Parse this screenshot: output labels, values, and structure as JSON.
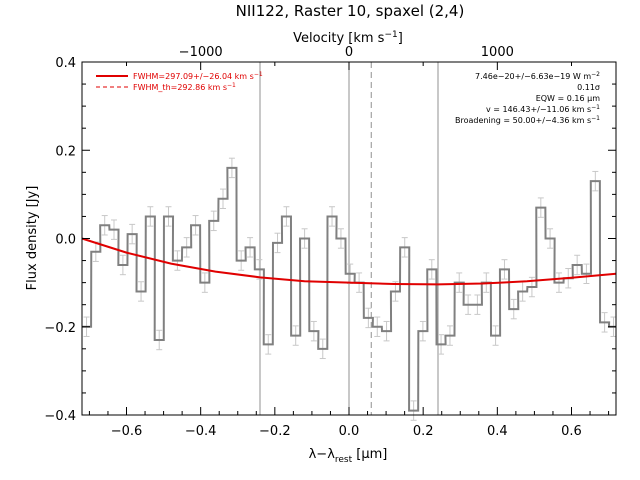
{
  "chart_data": {
    "type": "line",
    "title": "NII122, Raster 10, spaxel (2,4)",
    "xlabel": "λ−λ",
    "xlabel_sub": "rest",
    "xlabel_unit": " [μm]",
    "ylabel": "Flux density [Jy]",
    "top_axis_label": "Velocity [km s",
    "top_axis_sup": "−1",
    "top_axis_close": "]",
    "xlim": [
      -0.72,
      0.72
    ],
    "ylim": [
      -0.4,
      0.4
    ],
    "x_ticks": [
      -0.6,
      -0.4,
      -0.2,
      0.0,
      0.2,
      0.4,
      0.6
    ],
    "x_tick_labels": [
      "−0.6",
      "−0.4",
      "−0.2",
      "0.0",
      "0.2",
      "0.4",
      "0.6"
    ],
    "y_ticks": [
      -0.4,
      -0.2,
      0.0,
      0.2,
      0.4
    ],
    "y_tick_labels": [
      "−0.4",
      "−0.2",
      "0.0",
      "0.2",
      "0.4"
    ],
    "top_ticks_value": [
      -1000,
      0,
      1000
    ],
    "top_tick_labels": [
      "−1000",
      "0",
      "1000"
    ],
    "top_tick_x": [
      -0.4,
      0.0,
      0.4
    ],
    "vertical_lines": [
      {
        "x": -0.24,
        "style": "solid"
      },
      {
        "x": 0.0,
        "style": "solid"
      },
      {
        "x": 0.06,
        "style": "dashed"
      },
      {
        "x": 0.24,
        "style": "solid"
      }
    ],
    "legend": [
      {
        "label": "FWHM=297.09+/−26.04 km s",
        "sup": "−1",
        "style": "solid"
      },
      {
        "label": "FWHM_th=292.86 km s",
        "sup": "−1",
        "style": "dashed"
      }
    ],
    "legend_position": "top-left",
    "annotations": [
      {
        "text": "7.46e−20+/−6.63e−19 W m",
        "sup": "−2"
      },
      {
        "text": "0.11σ",
        "sup": ""
      },
      {
        "text": "EQW = 0.16 μm",
        "sup": ""
      },
      {
        "text": "v = 146.43+/−11.06 km s",
        "sup": "−1"
      },
      {
        "text": "Broadening = 50.00+/−4.36 km s",
        "sup": "−1"
      }
    ],
    "annotation_position": "top-right",
    "series": [
      {
        "style": "step",
        "color": "#808080",
        "bin_width": 0.0245,
        "x": [
          -0.72,
          -0.695,
          -0.671,
          -0.646,
          -0.622,
          -0.597,
          -0.573,
          -0.548,
          -0.524,
          -0.499,
          -0.475,
          -0.45,
          -0.426,
          -0.401,
          -0.377,
          -0.352,
          -0.328,
          -0.303,
          -0.279,
          -0.254,
          -0.23,
          -0.205,
          -0.181,
          -0.156,
          -0.132,
          -0.107,
          -0.083,
          -0.058,
          -0.034,
          -0.009,
          0.015,
          0.04,
          0.064,
          0.089,
          0.113,
          0.138,
          0.162,
          0.187,
          0.211,
          0.236,
          0.26,
          0.285,
          0.309,
          0.334,
          0.358,
          0.383,
          0.407,
          0.432,
          0.456,
          0.481,
          0.505,
          0.53,
          0.554,
          0.579,
          0.603,
          0.628,
          0.652,
          0.677,
          0.701
        ],
        "y": [
          -0.2,
          -0.03,
          0.03,
          0.02,
          -0.06,
          0.01,
          -0.12,
          0.05,
          -0.23,
          0.05,
          -0.05,
          -0.02,
          0.03,
          -0.1,
          0.04,
          0.09,
          0.16,
          -0.05,
          -0.02,
          -0.07,
          -0.24,
          -0.01,
          0.05,
          -0.22,
          0.0,
          -0.21,
          -0.25,
          0.05,
          0.0,
          -0.08,
          -0.1,
          -0.18,
          -0.2,
          -0.21,
          -0.12,
          -0.02,
          -0.39,
          -0.21,
          -0.07,
          -0.24,
          -0.22,
          -0.1,
          -0.15,
          -0.15,
          -0.1,
          -0.22,
          -0.07,
          -0.16,
          -0.12,
          -0.11,
          0.07,
          0.0,
          -0.1,
          -0.09,
          -0.06,
          -0.08,
          0.13,
          -0.19,
          -0.2
        ],
        "error": 0.022
      },
      {
        "style": "smooth",
        "color": "#e00000",
        "x": [
          -0.72,
          -0.6,
          -0.48,
          -0.36,
          -0.24,
          -0.12,
          0.0,
          0.12,
          0.24,
          0.36,
          0.48,
          0.6,
          0.72
        ],
        "y": [
          0.0,
          -0.032,
          -0.057,
          -0.075,
          -0.088,
          -0.097,
          -0.1,
          -0.103,
          -0.104,
          -0.102,
          -0.097,
          -0.089,
          -0.08
        ]
      }
    ]
  }
}
